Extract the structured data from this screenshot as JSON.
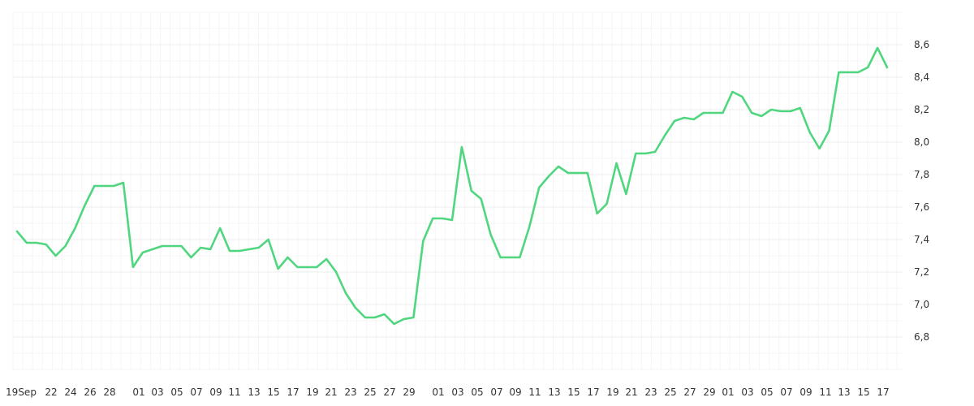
{
  "chart_data": {
    "type": "line",
    "title": "",
    "xlabel": "",
    "ylabel": "",
    "ylim": [
      6.6,
      8.8
    ],
    "y_ticks": [
      "6,8",
      "7,0",
      "7,2",
      "7,4",
      "7,6",
      "7,8",
      "8,0",
      "8,2",
      "8,4",
      "8,6"
    ],
    "y_axis_position": "right",
    "grid": true,
    "line_color": "#4fd67f",
    "x_ticks": [
      "19Sep",
      "22",
      "24",
      "26",
      "28",
      "01",
      "03",
      "05",
      "07",
      "09",
      "11",
      "13",
      "15",
      "17",
      "19",
      "21",
      "23",
      "25",
      "27",
      "29",
      "01",
      "03",
      "05",
      "07",
      "09",
      "11",
      "13",
      "15",
      "17",
      "19",
      "21",
      "23",
      "25",
      "27",
      "29",
      "01",
      "03",
      "05",
      "07",
      "09",
      "11",
      "13",
      "15",
      "17"
    ],
    "series": [
      {
        "values": [
          7.45,
          7.38,
          7.38,
          7.37,
          7.3,
          7.36,
          7.47,
          7.61,
          7.73,
          7.73,
          7.73,
          7.75,
          7.23,
          7.32,
          7.34,
          7.36,
          7.36,
          7.36,
          7.29,
          7.35,
          7.34,
          7.47,
          7.33,
          7.33,
          7.34,
          7.35,
          7.4,
          7.22,
          7.29,
          7.23,
          7.23,
          7.23,
          7.28,
          7.2,
          7.07,
          6.98,
          6.92,
          6.92,
          6.94,
          6.88,
          6.91,
          6.92,
          7.39,
          7.53,
          7.53,
          7.52,
          7.97,
          7.7,
          7.65,
          7.43,
          7.29,
          7.29,
          7.29,
          7.48,
          7.72,
          7.79,
          7.85,
          7.81,
          7.81,
          7.81,
          7.56,
          7.62,
          7.87,
          7.68,
          7.93,
          7.93,
          7.94,
          8.04,
          8.13,
          8.15,
          8.14,
          8.18,
          8.18,
          8.18,
          8.31,
          8.28,
          8.18,
          8.16,
          8.2,
          8.19,
          8.19,
          8.21,
          8.06,
          7.96,
          8.07,
          8.43,
          8.43,
          8.43,
          8.46,
          8.58,
          8.46
        ]
      }
    ]
  }
}
